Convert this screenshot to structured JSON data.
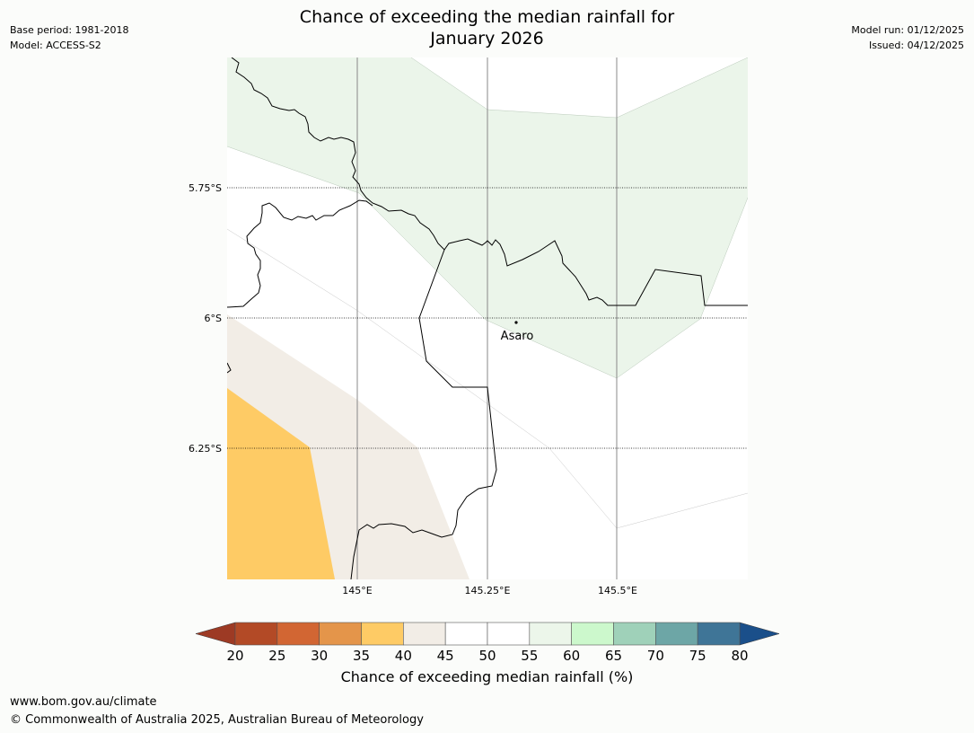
{
  "header": {
    "title_line1": "Chance of exceeding the median rainfall for",
    "title_line2": "January 2026",
    "base_period": "Base period: 1981-2018",
    "model": "Model: ACCESS-S2",
    "model_run": "Model run: 01/12/2025",
    "issued": "Issued: 04/12/2025"
  },
  "map": {
    "lat_labels": [
      "5.75°S",
      "6°S",
      "6.25°S"
    ],
    "lon_labels": [
      "145°E",
      "145.25°E",
      "145.5°E"
    ],
    "place": "Asaro",
    "colors": {
      "land_green": "#ebf5ea",
      "land_beige": "#f2ede6",
      "land_orange": "#fecb65",
      "land_white": "#ffffff",
      "border": "#000000",
      "meridian": "#888888"
    }
  },
  "colorbar": {
    "ticks": [
      "20",
      "25",
      "30",
      "35",
      "40",
      "45",
      "50",
      "55",
      "60",
      "65",
      "70",
      "75",
      "80"
    ],
    "under_color": "#9d3a24",
    "over_color": "#1a4f8a",
    "colors": [
      "#b34a26",
      "#d26633",
      "#e4954a",
      "#fecb65",
      "#f2ede6",
      "#ffffff",
      "#ffffff",
      "#ecf6ea",
      "#ccf8cc",
      "#9fd1b9",
      "#6da6a6",
      "#3f7597"
    ],
    "label": "Chance of exceeding median rainfall (%)"
  },
  "footer": {
    "url": "www.bom.gov.au/climate",
    "copyright": "© Commonwealth of Australia 2025, Australian Bureau of Meteorology"
  }
}
